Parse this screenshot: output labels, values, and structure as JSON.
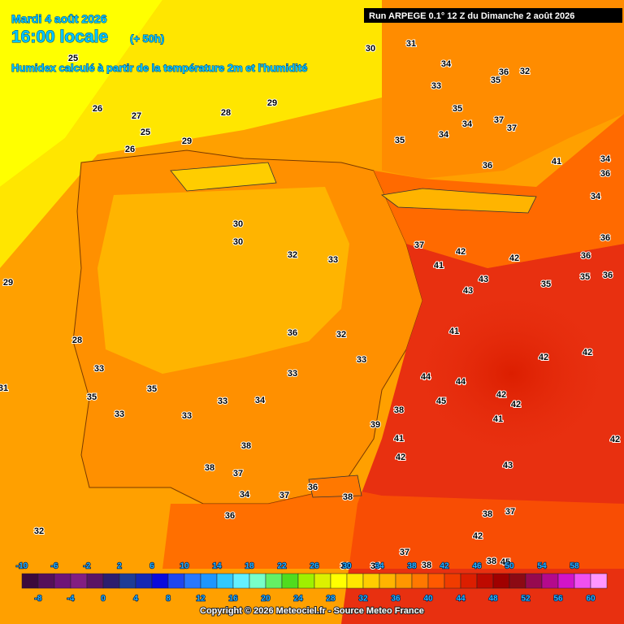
{
  "header": {
    "date": "Mardi 4 août 2026",
    "time": "16:00 locale",
    "lead": "(+ 50h)",
    "subtitle": "Humidex calculé à partir de la température 2m et l'humidité",
    "run": "Run ARPEGE 0.1° 12 Z du Dimanche 2 août 2026"
  },
  "map_labels": [
    25,
    26,
    27,
    25,
    28,
    29,
    30,
    31,
    34,
    33,
    35,
    35,
    36,
    32,
    34,
    34,
    37,
    37,
    35,
    36,
    41,
    34,
    36,
    34,
    36,
    36,
    35,
    36,
    29,
    28,
    31,
    32,
    26,
    29,
    30,
    30,
    32,
    33,
    36,
    32,
    33,
    33,
    34,
    33,
    33,
    33,
    35,
    33,
    35,
    37,
    42,
    41,
    43,
    43,
    41,
    42,
    35,
    42,
    42,
    42,
    42,
    41,
    44,
    44,
    45,
    38,
    39,
    41,
    42,
    43,
    42,
    38,
    37,
    42,
    38,
    45,
    37,
    38,
    34,
    30,
    38,
    38,
    37,
    37,
    36,
    38,
    34,
    36
  ],
  "legend": {
    "top_ticks": [
      -10,
      -6,
      -2,
      2,
      6,
      10,
      14,
      18,
      22,
      26,
      30,
      34,
      38,
      42,
      46,
      50,
      54,
      58
    ],
    "bottom_ticks": [
      -8,
      -4,
      0,
      4,
      8,
      12,
      16,
      20,
      24,
      28,
      32,
      36,
      40,
      44,
      48,
      52,
      56,
      60
    ],
    "range": [
      -10,
      62
    ],
    "colors": [
      "#3c0a3c",
      "#55105a",
      "#6e1478",
      "#821e82",
      "#5a1464",
      "#2d1e6e",
      "#1e3c96",
      "#1428b4",
      "#0a0adc",
      "#1e46f0",
      "#2878ff",
      "#1e96ff",
      "#32c8ff",
      "#64f0ff",
      "#78ffc8",
      "#64f064",
      "#50dc1e",
      "#a0f000",
      "#dcf000",
      "#ffff00",
      "#ffe600",
      "#ffcd00",
      "#ffb400",
      "#ff9600",
      "#ff7800",
      "#ff5a00",
      "#f03c00",
      "#dc1e00",
      "#be0a00",
      "#a00000",
      "#8c0a14",
      "#960a50",
      "#b40a8c",
      "#d214c8",
      "#f050f0",
      "#ff96ff"
    ]
  },
  "footer": {
    "copyright": "Copyright © 2026 Meteociel.fr - Source Meteo France"
  }
}
